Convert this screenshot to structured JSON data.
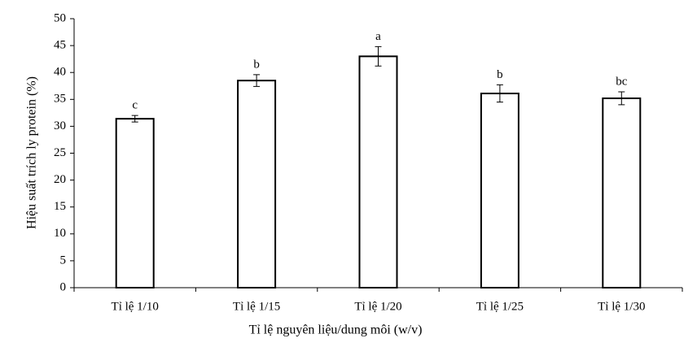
{
  "chart_data": {
    "type": "bar",
    "x_label": "Tỉ lệ nguyên liệu/dung môi (w/v)",
    "y_label": "Hiệu suất trích ly protein (%)",
    "categories": [
      "Tỉ lệ 1/10",
      "Tỉ lệ 1/15",
      "Tỉ lệ 1/20",
      "Tỉ lệ 1/25",
      "Tỉ lệ 1/30"
    ],
    "values": [
      31.4,
      38.5,
      43.0,
      36.1,
      35.2
    ],
    "errors": [
      0.6,
      1.1,
      1.8,
      1.6,
      1.2
    ],
    "letters": [
      "c",
      "b",
      "a",
      "b",
      "bc"
    ],
    "color": "#ffffff",
    "ylim": [
      0,
      50
    ],
    "yticks": [
      0,
      5,
      10,
      15,
      20,
      25,
      30,
      35,
      40,
      45,
      50
    ]
  }
}
